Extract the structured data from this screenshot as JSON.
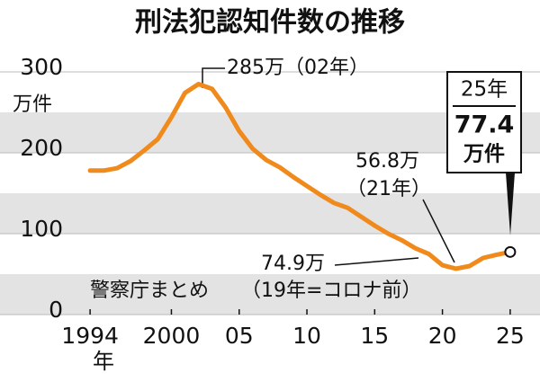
{
  "chart_data": {
    "type": "line",
    "title": "刑法犯認知件数の推移",
    "y_unit": "万件",
    "x_unit": "年",
    "source": "警察庁まとめ",
    "x": [
      1994,
      1995,
      1996,
      1997,
      1998,
      1999,
      2000,
      2001,
      2002,
      2003,
      2004,
      2005,
      2006,
      2007,
      2008,
      2009,
      2010,
      2011,
      2012,
      2013,
      2014,
      2015,
      2016,
      2017,
      2018,
      2019,
      2020,
      2021,
      2022,
      2023,
      2024,
      2025
    ],
    "series": [
      {
        "color": "#f08a1c",
        "values": [
          178,
          178,
          181,
          190,
          203,
          217,
          244,
          274,
          285,
          279,
          256,
          227,
          205,
          191,
          182,
          170,
          159,
          148,
          138,
          132,
          121,
          110,
          100,
          92,
          82,
          74.9,
          61,
          56.8,
          60,
          70,
          74,
          77.4
        ]
      }
    ],
    "xlim": [
      1992,
      2027
    ],
    "xticks": [
      1994,
      2000,
      {
        "value": 2005,
        "label": "05"
      },
      {
        "value": 2010,
        "label": "10"
      },
      {
        "value": 2015,
        "label": "15"
      },
      {
        "value": 2020,
        "label": "20"
      },
      {
        "value": 2025,
        "label": "25"
      }
    ],
    "ylim": [
      0,
      300
    ],
    "yticks": [
      0,
      100,
      200,
      300
    ],
    "grid": "bands",
    "annotations": {
      "peak": "285万（02年）",
      "y2021_value": "56.8万",
      "y2021_year": "（21年）",
      "y2019_value": "74.9万",
      "y2019_note": "（19年=コロナ前）"
    },
    "callout": {
      "year": "25年",
      "value": "77.4",
      "unit": "万件"
    }
  }
}
